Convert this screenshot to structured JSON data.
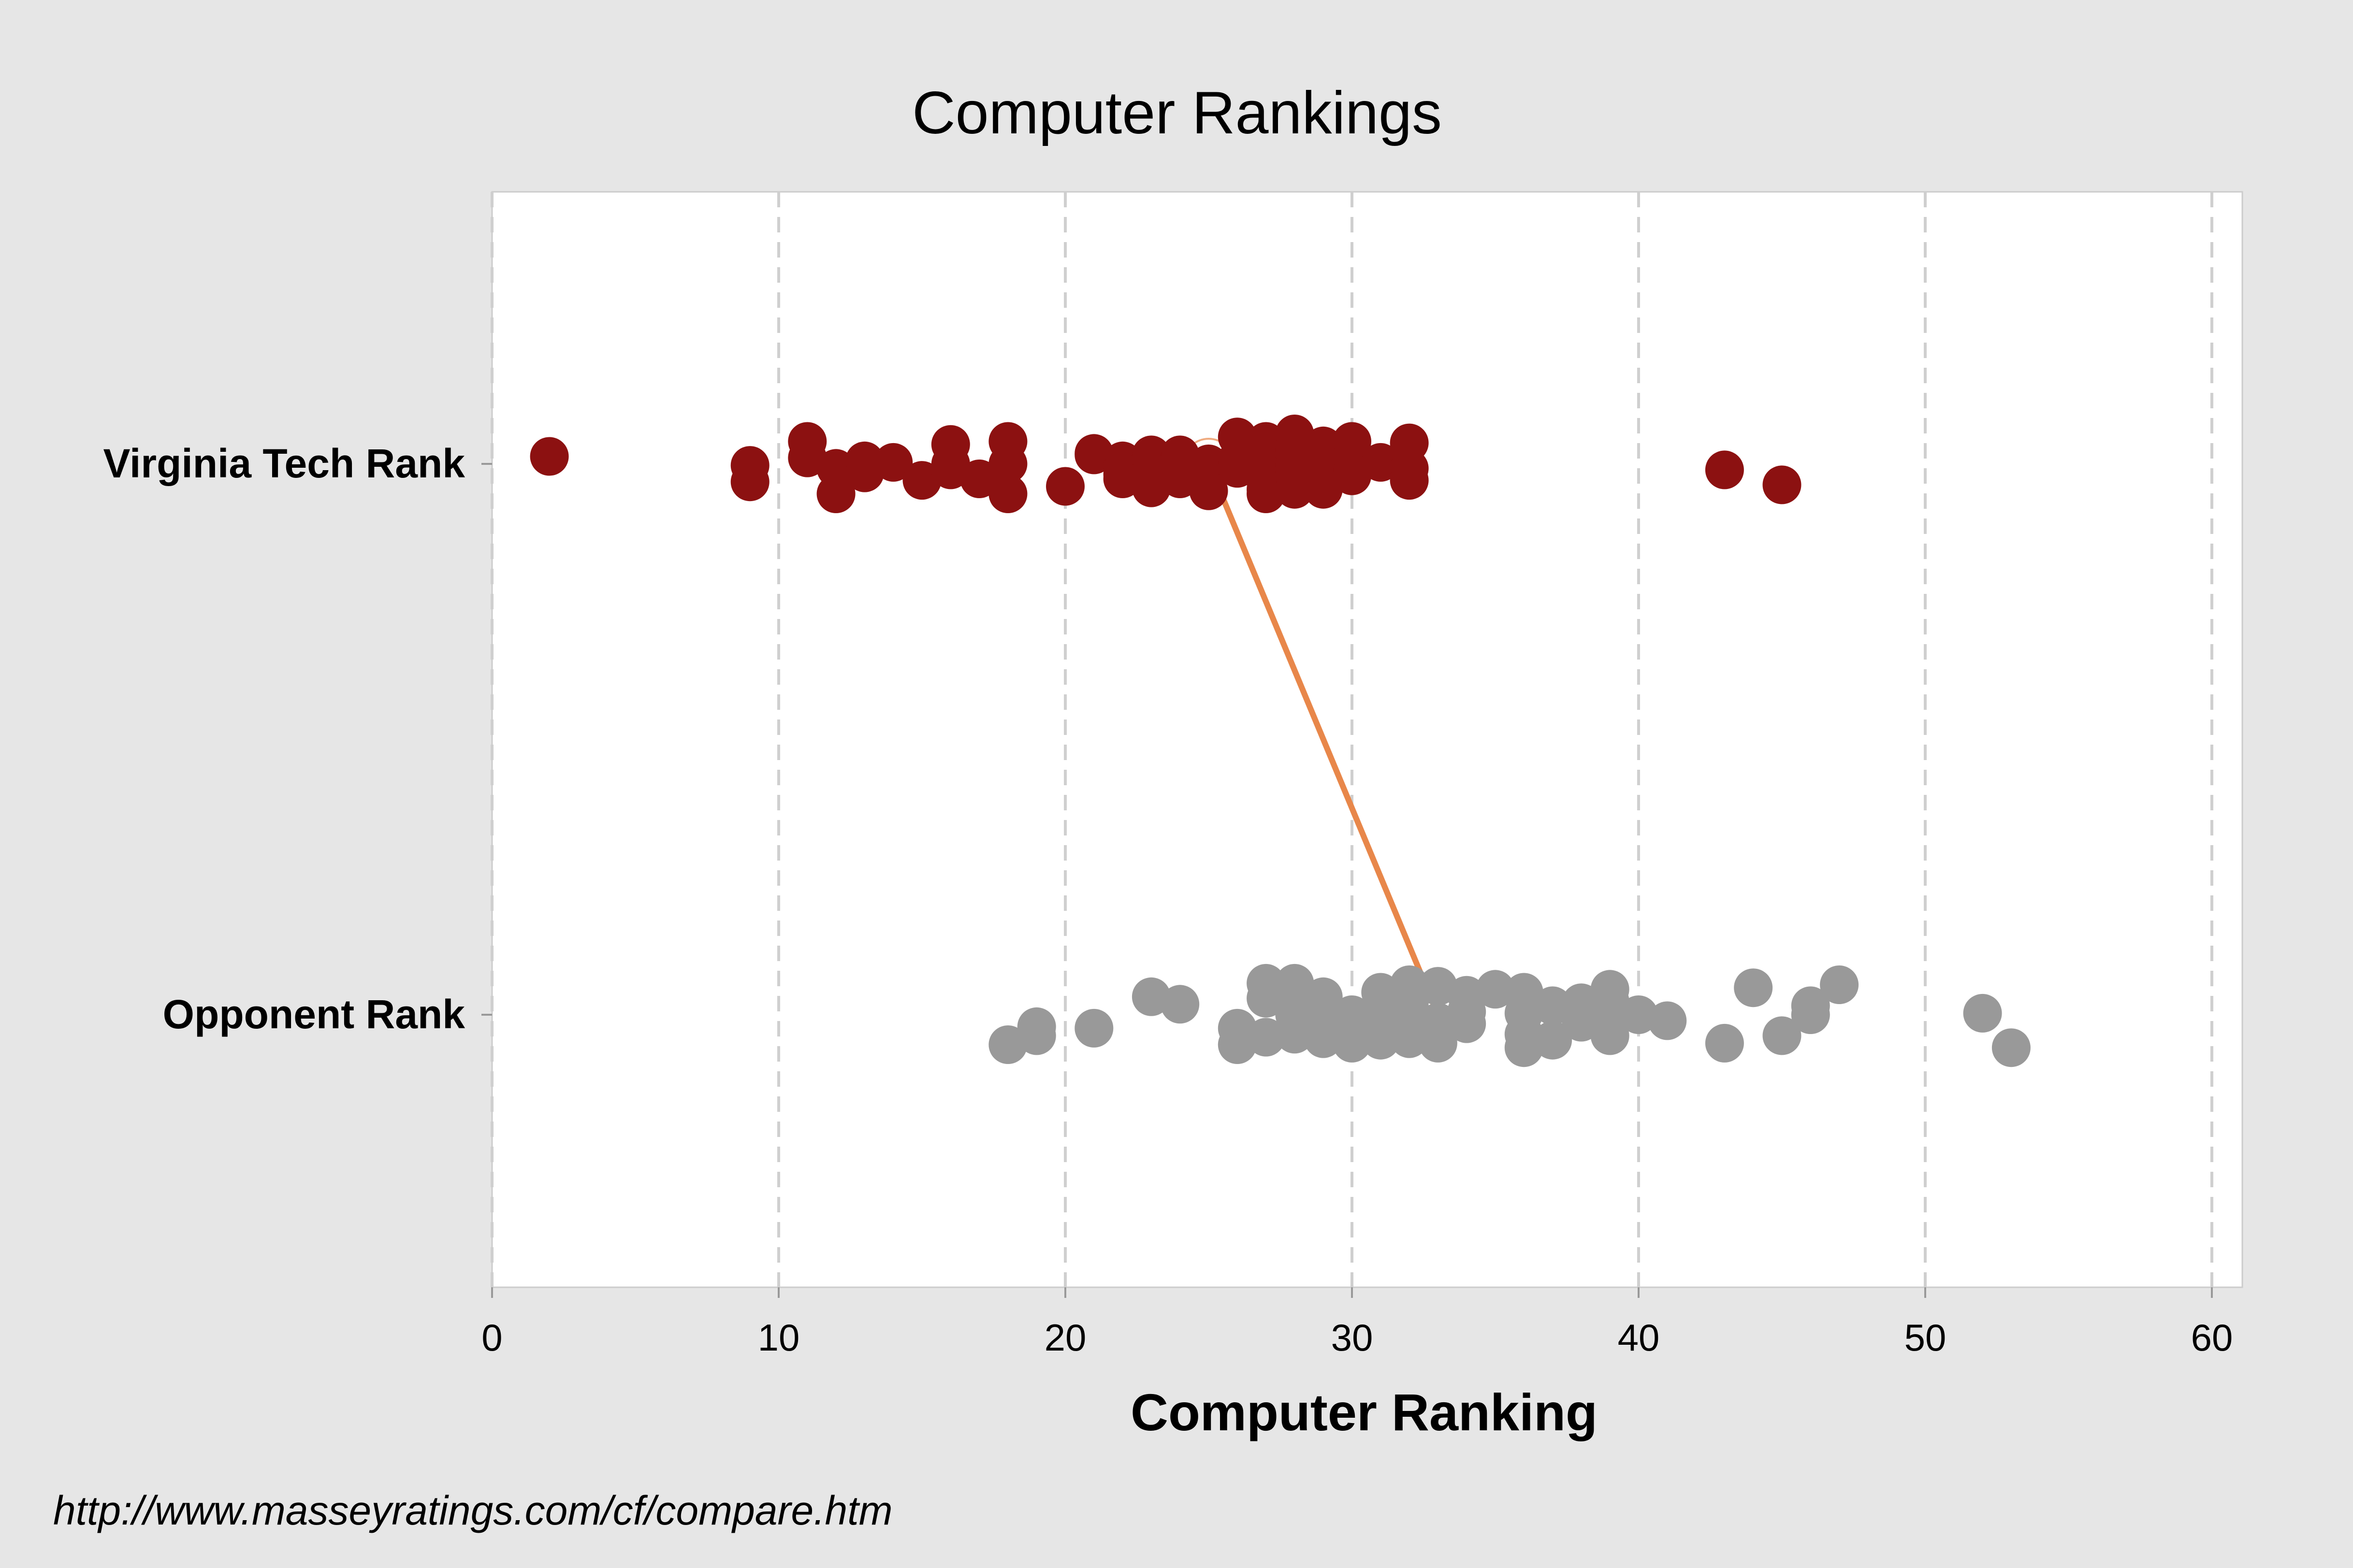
{
  "chart_data": {
    "type": "scatter",
    "title": "Computer Rankings",
    "xlabel": "Computer Ranking",
    "ylabel": "",
    "xlim": [
      0,
      61
    ],
    "xticks": [
      0,
      10,
      20,
      30,
      40,
      50,
      60
    ],
    "grid": "vertical dashed",
    "categories": [
      "Virginia Tech Rank",
      "Opponent Rank"
    ],
    "series": [
      {
        "category": "Virginia Tech Rank",
        "color": "#8c1111",
        "x": [
          2,
          9,
          9,
          11,
          11,
          12,
          12,
          13,
          13,
          14,
          15,
          16,
          16,
          16,
          17,
          18,
          18,
          18,
          20,
          21,
          21,
          22,
          22,
          22,
          22,
          23,
          23,
          23,
          23,
          24,
          24,
          24,
          25,
          25,
          26,
          26,
          26,
          27,
          27,
          27,
          27,
          27,
          27,
          28,
          28,
          28,
          28,
          28,
          28,
          28,
          29,
          29,
          29,
          29,
          30,
          30,
          30,
          30,
          31,
          32,
          32,
          32,
          43,
          45
        ],
        "jitter": [
          0.05,
          -0.01,
          -0.12,
          0.15,
          0.04,
          -0.03,
          -0.2,
          0.02,
          -0.06,
          0.01,
          -0.11,
          0.13,
          0.0,
          -0.04,
          -0.1,
          0.15,
          0.0,
          -0.2,
          -0.15,
          0.07,
          0.06,
          0.02,
          -0.03,
          -0.07,
          -0.1,
          0.06,
          0.03,
          -0.05,
          -0.16,
          0.06,
          0.03,
          -0.1,
          0.0,
          -0.18,
          0.18,
          0.03,
          -0.03,
          0.15,
          0.0,
          -0.09,
          -0.12,
          -0.17,
          -0.2,
          0.2,
          0.1,
          0.06,
          0.0,
          -0.04,
          -0.09,
          -0.17,
          0.12,
          0.05,
          -0.09,
          -0.17,
          0.15,
          0.04,
          -0.06,
          -0.08,
          0.01,
          0.14,
          -0.03,
          -0.11,
          -0.04,
          -0.14
        ]
      },
      {
        "category": "Opponent Rank",
        "color": "#999999",
        "x": [
          18,
          19,
          19,
          21,
          23,
          24,
          26,
          26,
          27,
          27,
          27,
          28,
          28,
          28,
          29,
          29,
          29,
          30,
          30,
          30,
          31,
          31,
          31,
          32,
          32,
          32,
          32,
          33,
          33,
          33,
          34,
          34,
          34,
          35,
          36,
          36,
          36,
          36,
          37,
          37,
          38,
          38,
          39,
          39,
          39,
          39,
          40,
          41,
          43,
          44,
          45,
          46,
          46,
          47,
          52,
          53
        ],
        "jitter": [
          -0.2,
          -0.08,
          -0.14,
          -0.09,
          0.12,
          0.07,
          -0.09,
          -0.2,
          0.21,
          0.11,
          -0.15,
          0.21,
          0.0,
          -0.13,
          0.12,
          0.0,
          -0.16,
          0.0,
          -0.07,
          -0.19,
          0.15,
          0.03,
          -0.17,
          0.2,
          0.07,
          -0.07,
          -0.16,
          0.19,
          -0.05,
          -0.19,
          0.13,
          0.02,
          -0.06,
          0.17,
          0.15,
          0.01,
          -0.13,
          -0.22,
          0.06,
          -0.17,
          0.08,
          -0.05,
          0.17,
          0.09,
          0.0,
          -0.14,
          0.0,
          -0.04,
          -0.19,
          0.18,
          -0.14,
          0.06,
          0.0,
          0.2,
          0.01,
          -0.22
        ]
      }
    ],
    "connector": {
      "from": {
        "category": "Virginia Tech Rank",
        "x": 25
      },
      "to": {
        "category": "Opponent Rank",
        "x": 33
      },
      "color": "#e8874a"
    }
  },
  "source": "http://www.masseyratings.com/cf/compare.htm"
}
